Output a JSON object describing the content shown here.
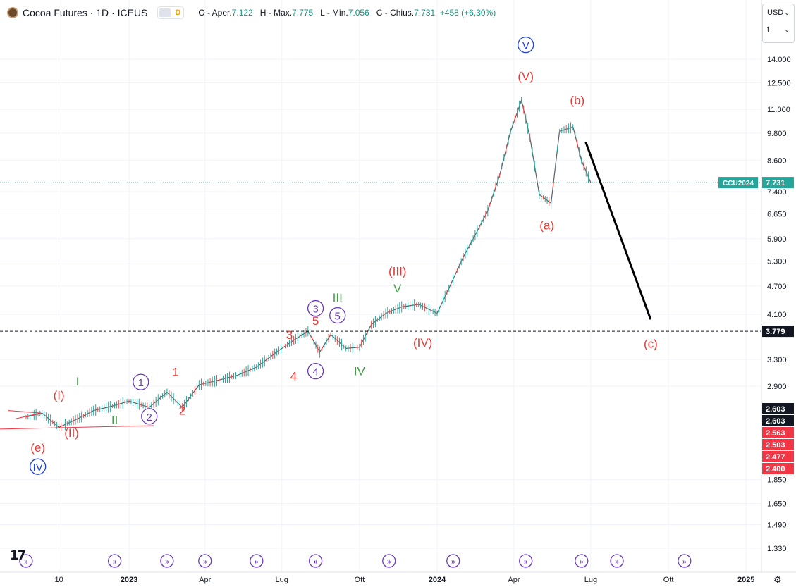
{
  "header": {
    "symbol_title": "Cocoa Futures · 1D · ICEUS",
    "indicator_letter": "D",
    "open_label": "O - Aper.",
    "open_value": "7.122",
    "high_label": "H - Max.",
    "high_value": "7.775",
    "low_label": "L - Min.",
    "low_value": "7.056",
    "close_label": "C - Chius.",
    "close_value": "7.731",
    "change_value": "+458 (+6,30%)"
  },
  "unit_box": {
    "currency": "USD",
    "unit": "t"
  },
  "colors": {
    "accent": "#089981",
    "wave_red": "#e53935",
    "wave_green": "#43a047",
    "wave_purple": "#673ab7",
    "wave_blue": "#1e40d8",
    "grid": "#f0f3fa",
    "text": "#131722",
    "last_price_line": "#26a69a"
  },
  "chart_data": {
    "type": "line",
    "symbol": "Cocoa Futures · 1D · ICEUS",
    "y_scale": "log",
    "y_ticks": [
      "14.000",
      "12.500",
      "11.000",
      "9.800",
      "8.600",
      "7.400",
      "6.650",
      "5.900",
      "5.300",
      "4.700",
      "4.100",
      "3.300",
      "2.900",
      "1.850",
      "1.650",
      "1.490",
      "1.330"
    ],
    "x_ticks": [
      "10",
      "2023",
      "Apr",
      "Lug",
      "Ott",
      "2024",
      "Apr",
      "Lug",
      "Ott",
      "2025"
    ],
    "series": [
      {
        "x": [
          "2022-09-01",
          "2022-09-20",
          "2022-10-10",
          "2022-11-01",
          "2022-11-20",
          "2022-12-10",
          "2023-01-01",
          "2023-01-25",
          "2023-02-15",
          "2023-03-05",
          "2023-03-25",
          "2023-04-15",
          "2023-05-10",
          "2023-06-01",
          "2023-06-25",
          "2023-07-15",
          "2023-08-01",
          "2023-08-15",
          "2023-08-28",
          "2023-09-15",
          "2023-10-01",
          "2023-10-15",
          "2023-11-01",
          "2023-11-20",
          "2023-12-10",
          "2024-01-01",
          "2024-01-15",
          "2024-02-01",
          "2024-02-15",
          "2024-03-01",
          "2024-03-15",
          "2024-03-28",
          "2024-04-10",
          "2024-04-20",
          "2024-05-01",
          "2024-05-15",
          "2024-05-25",
          "2024-06-10",
          "2024-06-20",
          "2024-07-01"
        ],
        "values": [
          2.5,
          2.55,
          2.38,
          2.48,
          2.58,
          2.63,
          2.7,
          2.62,
          2.82,
          2.62,
          2.92,
          2.98,
          3.06,
          3.18,
          3.42,
          3.62,
          3.78,
          3.42,
          3.72,
          3.48,
          3.5,
          3.9,
          4.12,
          4.25,
          4.3,
          4.12,
          4.65,
          5.4,
          6.0,
          6.75,
          8.0,
          9.9,
          11.5,
          9.6,
          7.3,
          7.0,
          9.9,
          10.1,
          8.6,
          7.73
        ]
      }
    ],
    "levels": {
      "current": "7.731",
      "current_label": "CCU2024",
      "support": "3.779",
      "red_labels": [
        "2.563",
        "2.503",
        "2.477",
        "2.400"
      ],
      "black_labels": [
        "2.603",
        "2.603"
      ]
    },
    "wave_labels": [
      {
        "text": "V",
        "date": "2024-04-15",
        "price": 15.0,
        "color": "blue",
        "circled": true
      },
      {
        "text": "(V)",
        "date": "2024-04-15",
        "price": 12.9,
        "color": "red"
      },
      {
        "text": "(b)",
        "date": "2024-06-15",
        "price": 11.5,
        "color": "red"
      },
      {
        "text": "(a)",
        "date": "2024-05-10",
        "price": 6.3,
        "color": "red"
      },
      {
        "text": "(c)",
        "date": "2024-09-10",
        "price": 3.56,
        "color": "red"
      },
      {
        "text": "(III)",
        "date": "2023-11-15",
        "price": 5.05,
        "color": "red"
      },
      {
        "text": "V",
        "date": "2023-11-15",
        "price": 4.65,
        "color": "green"
      },
      {
        "text": "(IV)",
        "date": "2023-12-15",
        "price": 3.58,
        "color": "red"
      },
      {
        "text": "III",
        "date": "2023-09-05",
        "price": 4.45,
        "color": "green"
      },
      {
        "text": "IV",
        "date": "2023-10-01",
        "price": 3.12,
        "color": "green"
      },
      {
        "text": "3",
        "date": "2023-08-10",
        "price": 4.22,
        "color": "purple",
        "circled": true
      },
      {
        "text": "5",
        "date": "2023-08-10",
        "price": 3.98,
        "color": "red"
      },
      {
        "text": "5",
        "date": "2023-09-05",
        "price": 4.08,
        "color": "purple",
        "circled": true
      },
      {
        "text": "3",
        "date": "2023-07-10",
        "price": 3.72,
        "color": "red"
      },
      {
        "text": "4",
        "date": "2023-08-10",
        "price": 3.12,
        "color": "purple",
        "circled": true
      },
      {
        "text": "4",
        "date": "2023-07-15",
        "price": 3.05,
        "color": "red"
      },
      {
        "text": "1",
        "date": "2023-02-25",
        "price": 3.11,
        "color": "red"
      },
      {
        "text": "2",
        "date": "2023-03-05",
        "price": 2.58,
        "color": "red"
      },
      {
        "text": "1",
        "date": "2023-01-15",
        "price": 2.96,
        "color": "purple",
        "circled": true
      },
      {
        "text": "2",
        "date": "2023-01-25",
        "price": 2.51,
        "color": "purple",
        "circled": true
      },
      {
        "text": "I",
        "date": "2022-11-01",
        "price": 2.97,
        "color": "green"
      },
      {
        "text": "II",
        "date": "2022-12-15",
        "price": 2.47,
        "color": "green"
      },
      {
        "text": "(I)",
        "date": "2022-10-10",
        "price": 2.78,
        "color": "red"
      },
      {
        "text": "(II)",
        "date": "2022-10-25",
        "price": 2.32,
        "color": "red"
      },
      {
        "text": "(e)",
        "date": "2022-09-15",
        "price": 2.16,
        "color": "red"
      },
      {
        "text": "IV",
        "date": "2022-09-15",
        "price": 1.97,
        "color": "blue",
        "circled": true
      }
    ],
    "projection": {
      "from_date": "2024-06-25",
      "from_price": 9.4,
      "to_date": "2024-09-10",
      "to_price": 4.0
    },
    "grid": true,
    "legend": "none"
  }
}
